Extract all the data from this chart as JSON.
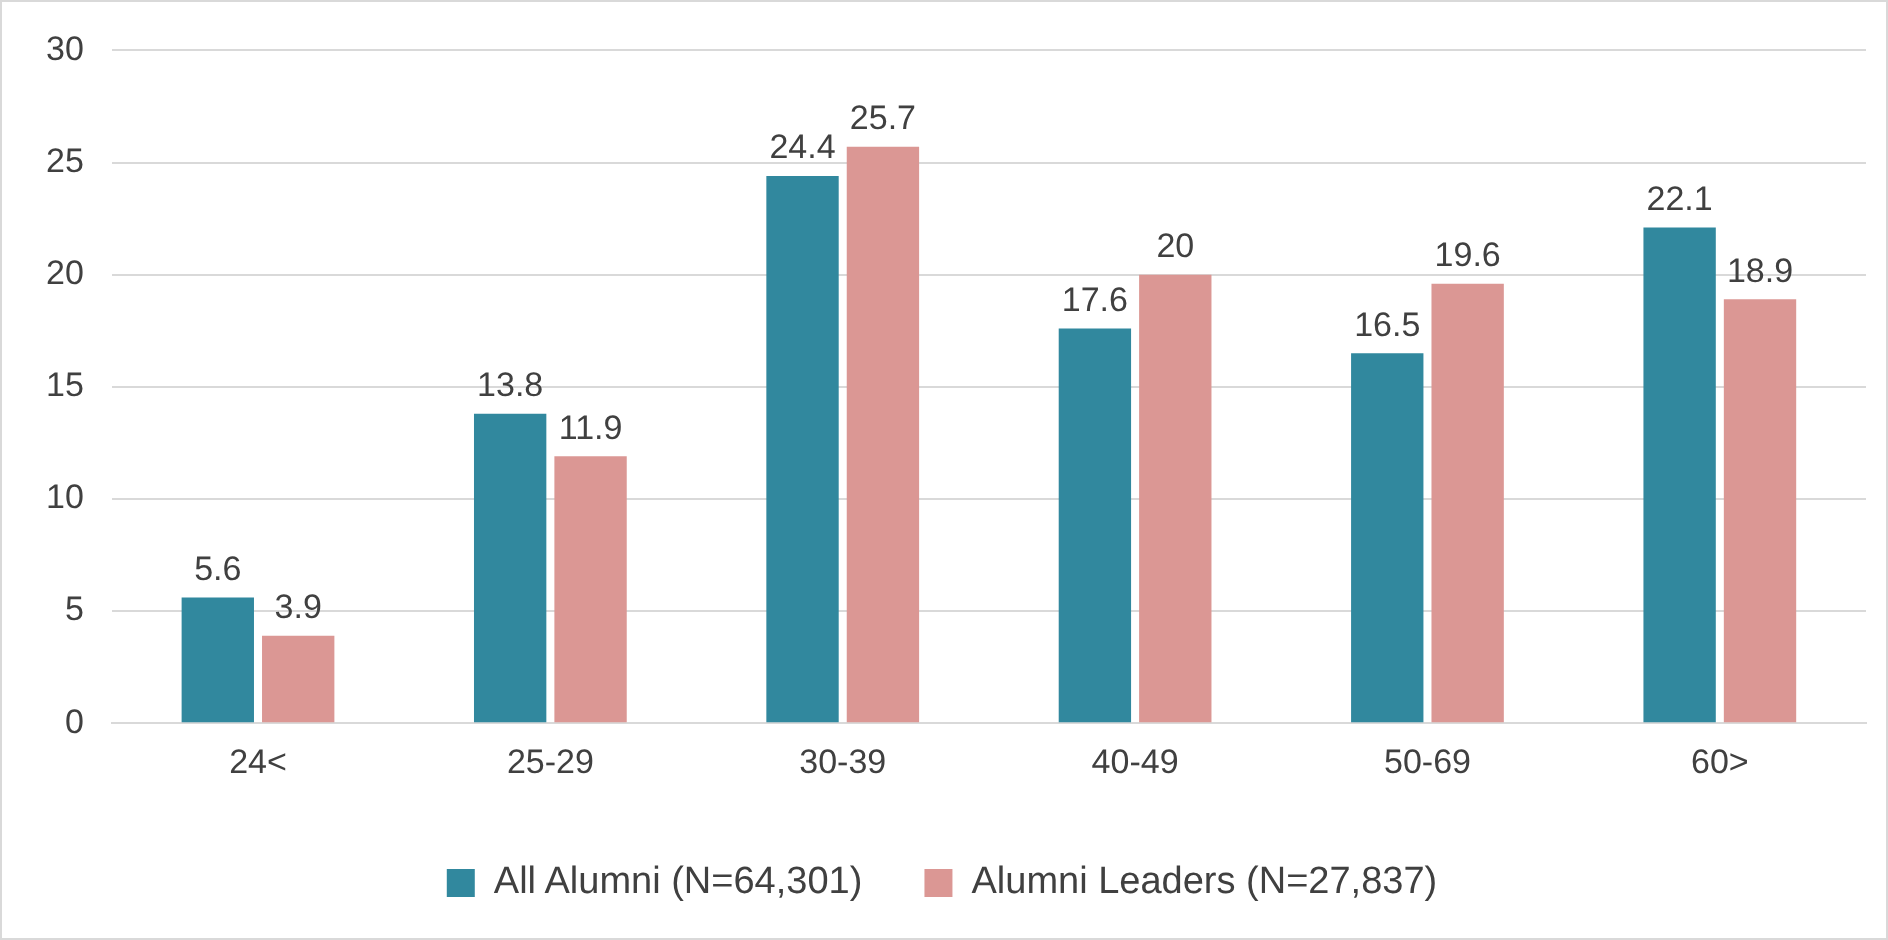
{
  "chart_data": {
    "type": "bar",
    "categories": [
      "24<",
      "25-29",
      "30-39",
      "40-49",
      "50-69",
      "60>"
    ],
    "series": [
      {
        "name": "All Alumni (N=64,301)",
        "color": "#31889e",
        "values": [
          5.6,
          13.8,
          24.4,
          17.6,
          16.5,
          22.1
        ]
      },
      {
        "name": "Alumni Leaders (N=27,837)",
        "color": "#db9794",
        "values": [
          3.9,
          11.9,
          25.7,
          20,
          19.6,
          18.9
        ]
      }
    ],
    "ylim": [
      0,
      30
    ],
    "yticks": [
      0,
      5,
      10,
      15,
      20,
      25,
      30
    ],
    "grid": "y",
    "legend": "bottom",
    "data_labels": true
  }
}
